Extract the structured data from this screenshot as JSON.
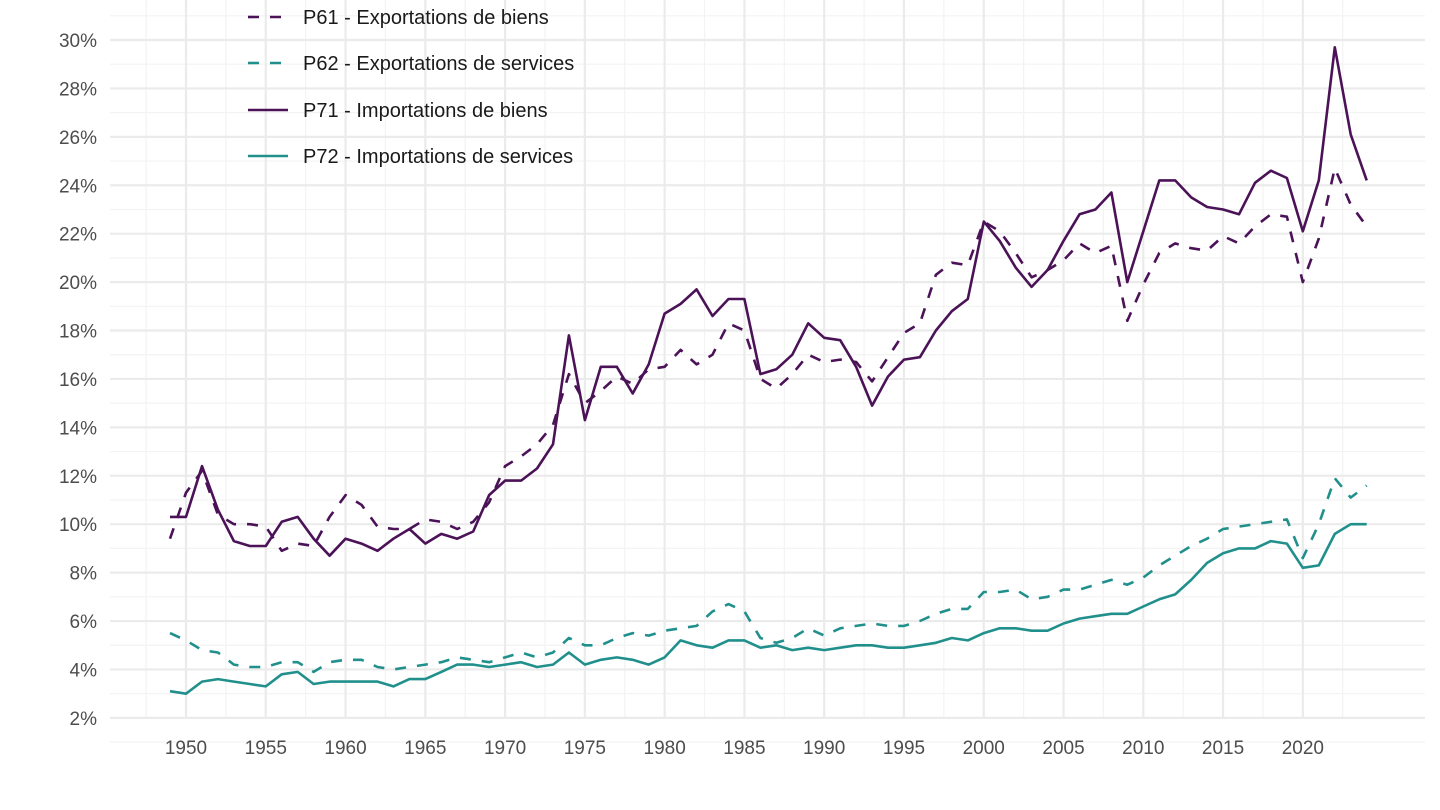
{
  "chart_data": {
    "type": "line",
    "title": "",
    "xlabel": "",
    "ylabel": "",
    "xlim": [
      1945.5,
      2028
    ],
    "ylim": [
      2,
      30.5
    ],
    "grid": true,
    "legend_position": "top-left",
    "x_ticks": [
      1950,
      1955,
      1960,
      1965,
      1970,
      1975,
      1980,
      1985,
      1990,
      1995,
      2000,
      2005,
      2010,
      2015,
      2020
    ],
    "x_tick_labels": [
      "1950",
      "1955",
      "1960",
      "1965",
      "1970",
      "1975",
      "1980",
      "1985",
      "1990",
      "1995",
      "2000",
      "2005",
      "2010",
      "2015",
      "2020"
    ],
    "y_ticks": [
      2,
      4,
      6,
      8,
      10,
      12,
      14,
      16,
      18,
      20,
      22,
      24,
      26,
      28,
      30
    ],
    "y_tick_labels": [
      "2%",
      "4%",
      "6%",
      "8%",
      "10%",
      "12%",
      "14%",
      "16%",
      "18%",
      "20%",
      "22%",
      "24%",
      "26%",
      "28%",
      "30%"
    ],
    "x": [
      1949,
      1950,
      1951,
      1952,
      1953,
      1954,
      1955,
      1956,
      1957,
      1958,
      1959,
      1960,
      1961,
      1962,
      1963,
      1964,
      1965,
      1966,
      1967,
      1968,
      1969,
      1970,
      1971,
      1972,
      1973,
      1974,
      1975,
      1976,
      1977,
      1978,
      1979,
      1980,
      1981,
      1982,
      1983,
      1984,
      1985,
      1986,
      1987,
      1988,
      1989,
      1990,
      1991,
      1992,
      1993,
      1994,
      1995,
      1996,
      1997,
      1998,
      1999,
      2000,
      2001,
      2002,
      2003,
      2004,
      2005,
      2006,
      2007,
      2008,
      2009,
      2010,
      2011,
      2012,
      2013,
      2014,
      2015,
      2016,
      2017,
      2018,
      2019,
      2020,
      2021,
      2022,
      2023,
      2024
    ],
    "series": [
      {
        "name": "P61 - Exportations de biens",
        "color": "#4b1257",
        "dash": "dashed",
        "values": [
          9.4,
          11.3,
          12.2,
          10.4,
          10.0,
          10.0,
          9.9,
          8.9,
          9.2,
          9.1,
          10.3,
          11.2,
          10.8,
          9.9,
          9.8,
          9.8,
          10.2,
          10.1,
          9.8,
          10.1,
          10.9,
          12.4,
          12.8,
          13.3,
          14.1,
          16.2,
          15.0,
          15.5,
          16.1,
          15.8,
          16.4,
          16.5,
          17.2,
          16.6,
          17.0,
          18.3,
          18.0,
          16.0,
          15.6,
          16.2,
          17.0,
          16.7,
          16.8,
          16.7,
          15.9,
          16.9,
          17.9,
          18.3,
          20.3,
          20.8,
          20.7,
          22.5,
          22.1,
          21.2,
          20.2,
          20.5,
          20.9,
          21.6,
          21.2,
          21.5,
          18.4,
          19.9,
          21.2,
          21.6,
          21.4,
          21.3,
          21.9,
          21.6,
          22.3,
          22.8,
          22.7,
          20.0,
          21.8,
          24.7,
          23.2,
          22.3
        ]
      },
      {
        "name": "P62 - Exportations de services",
        "color": "#21908c",
        "dash": "dashed",
        "values": [
          5.5,
          5.2,
          4.8,
          4.7,
          4.2,
          4.1,
          4.1,
          4.3,
          4.3,
          3.9,
          4.3,
          4.4,
          4.4,
          4.1,
          4.0,
          4.1,
          4.2,
          4.3,
          4.5,
          4.4,
          4.3,
          4.5,
          4.7,
          4.5,
          4.7,
          5.3,
          5.0,
          5.0,
          5.3,
          5.5,
          5.4,
          5.6,
          5.7,
          5.8,
          6.4,
          6.7,
          6.4,
          5.3,
          5.1,
          5.3,
          5.7,
          5.4,
          5.7,
          5.8,
          5.9,
          5.8,
          5.8,
          6.0,
          6.3,
          6.5,
          6.5,
          7.2,
          7.2,
          7.3,
          6.9,
          7.0,
          7.3,
          7.3,
          7.5,
          7.7,
          7.5,
          7.8,
          8.3,
          8.7,
          9.1,
          9.4,
          9.8,
          9.9,
          10.0,
          10.1,
          10.2,
          8.6,
          10.0,
          11.9,
          11.1,
          11.6
        ]
      },
      {
        "name": "P71 - Importations de biens",
        "color": "#4b1257",
        "dash": "solid",
        "values": [
          10.3,
          10.3,
          12.4,
          10.6,
          9.3,
          9.1,
          9.1,
          10.1,
          10.3,
          9.4,
          8.7,
          9.4,
          9.2,
          8.9,
          9.4,
          9.8,
          9.2,
          9.6,
          9.4,
          9.7,
          11.2,
          11.8,
          11.8,
          12.3,
          13.3,
          17.8,
          14.3,
          16.5,
          16.5,
          15.4,
          16.6,
          18.7,
          19.1,
          19.7,
          18.6,
          19.3,
          19.3,
          16.2,
          16.4,
          17.0,
          18.3,
          17.7,
          17.6,
          16.5,
          14.9,
          16.1,
          16.8,
          16.9,
          18.0,
          18.8,
          19.3,
          22.5,
          21.7,
          20.6,
          19.8,
          20.5,
          21.7,
          22.8,
          23.0,
          23.7,
          20.0,
          22.1,
          24.2,
          24.2,
          23.5,
          23.1,
          23.0,
          22.8,
          24.1,
          24.6,
          24.3,
          22.1,
          24.2,
          29.7,
          26.1,
          24.2
        ]
      },
      {
        "name": "P72 - Importations de services",
        "color": "#21908c",
        "dash": "solid",
        "values": [
          3.1,
          3.0,
          3.5,
          3.6,
          3.5,
          3.4,
          3.3,
          3.8,
          3.9,
          3.4,
          3.5,
          3.5,
          3.5,
          3.5,
          3.3,
          3.6,
          3.6,
          3.9,
          4.2,
          4.2,
          4.1,
          4.2,
          4.3,
          4.1,
          4.2,
          4.7,
          4.2,
          4.4,
          4.5,
          4.4,
          4.2,
          4.5,
          5.2,
          5.0,
          4.9,
          5.2,
          5.2,
          4.9,
          5.0,
          4.8,
          4.9,
          4.8,
          4.9,
          5.0,
          5.0,
          4.9,
          4.9,
          5.0,
          5.1,
          5.3,
          5.2,
          5.5,
          5.7,
          5.7,
          5.6,
          5.6,
          5.9,
          6.1,
          6.2,
          6.3,
          6.3,
          6.6,
          6.9,
          7.1,
          7.7,
          8.4,
          8.8,
          9.0,
          9.0,
          9.3,
          9.2,
          8.2,
          8.3,
          9.6,
          10.0,
          10.0
        ]
      }
    ]
  }
}
